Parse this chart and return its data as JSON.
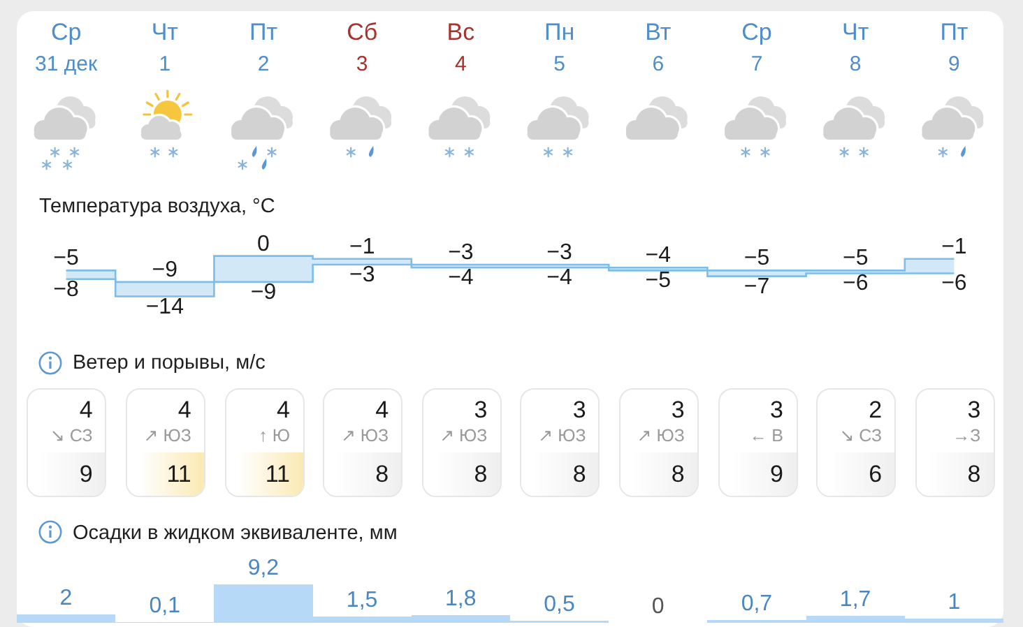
{
  "chart_data": [
    {
      "type": "step",
      "title": "Температура воздуха, °C",
      "categories": [
        "Ср\n31 дек",
        "Чт\n1",
        "Пт\n2",
        "Сб\n3",
        "Вс\n4",
        "Пн\n5",
        "Вт\n6",
        "Ср\n7",
        "Чт\n8",
        "Пт\n9"
      ],
      "tick_labels": "x",
      "data_labels": true,
      "series": [
        {
          "color": "#7fbde6",
          "values": [
            -5,
            -9,
            0,
            -1,
            -3,
            -3,
            -4,
            -5,
            -5,
            -1
          ]
        },
        {
          "color": "#7fbde6",
          "values": [
            -8,
            -14,
            -9,
            -3,
            -4,
            -4,
            -5,
            -7,
            -6,
            -6
          ]
        }
      ]
    },
    {
      "type": "other",
      "title": "Ветер и порывы, м/с",
      "annotations": [
        "4",
        "↘ СЗ",
        "9",
        "4",
        "↗ ЮЗ",
        "11",
        "4",
        "↑ Ю",
        "11",
        "4",
        "↗ ЮЗ",
        "8",
        "3",
        "↗ ЮЗ",
        "8",
        "3",
        "↗ ЮЗ",
        "8",
        "3",
        "↗ ЮЗ",
        "8",
        "3",
        "← В",
        "9",
        "2",
        "↘ СЗ",
        "6",
        "3",
        "→З",
        "8"
      ],
      "colors": [
        "#efefef",
        "#fbe9b4",
        "#fbe9b4",
        "#efefef",
        "#efefef",
        "#efefef",
        "#efefef",
        "#efefef",
        "#efefef",
        "#efefef"
      ]
    },
    {
      "type": "bar",
      "title": "Осадки в жидком эквиваленте, мм",
      "categories": [
        null,
        null,
        null,
        null,
        null,
        null,
        null,
        null,
        null,
        null
      ],
      "tick_labels": false,
      "values": [
        2,
        0.1,
        9.2,
        1.5,
        1.8,
        0.5,
        0,
        0.7,
        1.7,
        1
      ],
      "value_labels": [
        "2",
        "0,1",
        "9,2",
        "1,5",
        "1,8",
        "0,5",
        "0",
        "0,7",
        "1,7",
        "1"
      ],
      "color": "#b5d9f6"
    }
  ]
}
